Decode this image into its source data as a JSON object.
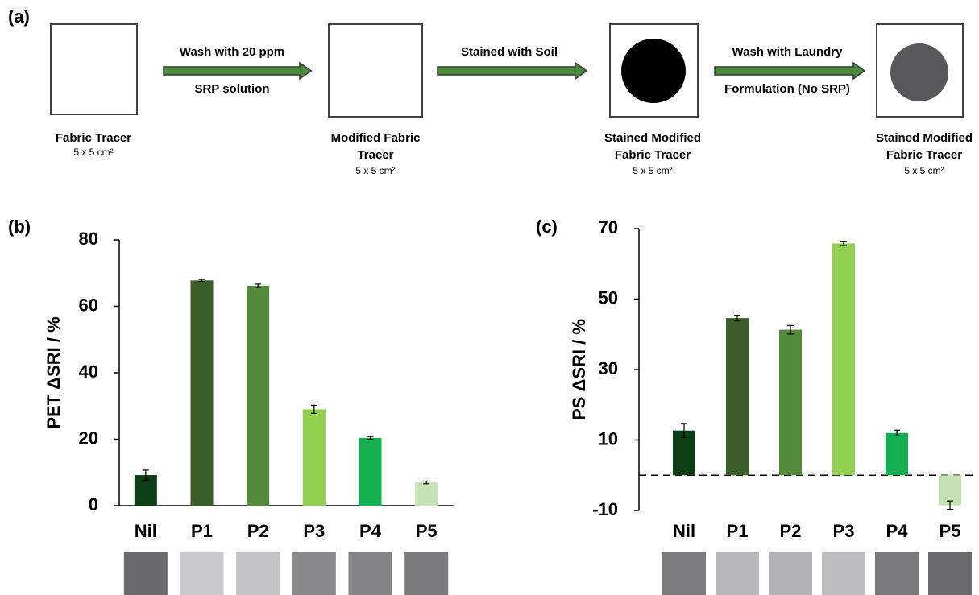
{
  "panel_labels": [
    "(a)",
    "(b)",
    "(c)"
  ],
  "diagram": {
    "nodes": [
      {
        "label": [
          "Fabric Tracer"
        ],
        "size": "5 x 5 cm²"
      },
      {
        "label": [
          "Modified Fabric",
          "Tracer"
        ],
        "size": "5 x 5 cm²"
      },
      {
        "label": [
          "Stained Modified",
          "Fabric Tracer"
        ],
        "size": "5 x 5 cm²"
      },
      {
        "label": [
          "Stained Modified",
          "Fabric Tracer"
        ],
        "size": "5 x 5 cm²"
      }
    ],
    "arrows": [
      {
        "top": "Wash with 20 ppm",
        "bottom": "SRP solution"
      },
      {
        "top": "Stained with Soil"
      },
      {
        "top": "Wash with Laundry",
        "bottom": "Formulation (No SRP)"
      }
    ]
  },
  "chart_data": [
    {
      "type": "bar",
      "ylabel": "PET ΔSRI / %",
      "categories": [
        "Nil",
        "P1",
        "P2",
        "P3",
        "P4",
        "P5"
      ],
      "values": [
        9.2,
        67.8,
        66.2,
        29,
        20.4,
        7
      ],
      "errors": [
        1.5,
        0.3,
        0.5,
        1.2,
        0.4,
        0.4
      ],
      "colors": [
        "#0d3d14",
        "#3a5e2a",
        "#548a3c",
        "#92d050",
        "#12b050",
        "#c4e2b4"
      ],
      "swatch_colors": [
        "#6a6a6c",
        "#c9c9cb",
        "#c3c3c5",
        "#8a8a8c",
        "#848486",
        "#7a7a7c"
      ],
      "ylim": [
        0,
        80
      ],
      "yticks": [
        0,
        20,
        40,
        60,
        80
      ]
    },
    {
      "type": "bar",
      "ylabel": "PS ΔSRI / %",
      "categories": [
        "Nil",
        "P1",
        "P2",
        "P3",
        "P4",
        "P5"
      ],
      "values": [
        12.7,
        44.6,
        41.3,
        65.8,
        12,
        -8.5
      ],
      "errors": [
        2,
        0.8,
        1.2,
        0.6,
        0.8,
        1.2
      ],
      "colors": [
        "#0d3d14",
        "#3a5e2a",
        "#548a3c",
        "#92d050",
        "#12b050",
        "#c4e2b4"
      ],
      "swatch_colors": [
        "#7c7c7e",
        "#b9b9bb",
        "#b3b3b5",
        "#bdbdbf",
        "#7a7a7c",
        "#6c6c6e"
      ],
      "ylim": [
        -10,
        70
      ],
      "yticks": [
        -10,
        10,
        30,
        50,
        70
      ],
      "hline": 0
    }
  ]
}
